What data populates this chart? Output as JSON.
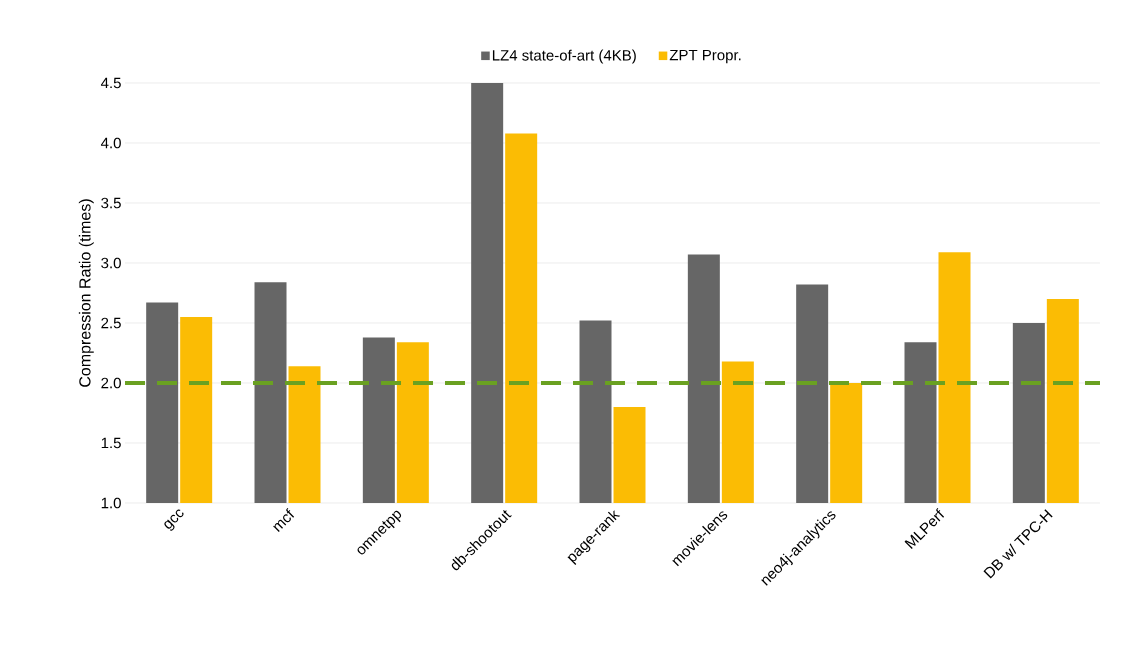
{
  "chart_data": {
    "type": "bar",
    "ylabel": "Compression Ratio (times)",
    "categories": [
      "gcc",
      "mcf",
      "omnetpp",
      "db-shootout",
      "page-rank",
      "movie-lens",
      "neo4j-analytics",
      "MLPerf",
      "DB w/ TPC-H"
    ],
    "series": [
      {
        "name": "LZ4 state-of-art (4KB)",
        "color": "#666666",
        "values": [
          2.67,
          2.84,
          2.38,
          4.5,
          2.52,
          3.07,
          2.82,
          2.34,
          2.5
        ]
      },
      {
        "name": "ZPT Propr.",
        "color": "#fbbc04",
        "values": [
          2.55,
          2.14,
          2.34,
          4.08,
          1.8,
          2.18,
          2.0,
          3.09,
          2.7
        ]
      }
    ],
    "ylim": [
      1.0,
      4.5
    ],
    "yticks": [
      {
        "value": 1,
        "label": "1.0"
      },
      1.5,
      {
        "value": 2,
        "label": "2.0"
      },
      2.5,
      {
        "value": 3,
        "label": "3.0"
      },
      3.5,
      {
        "value": 4,
        "label": "4.0"
      },
      4.5
    ],
    "grid": "y",
    "legend": "top",
    "ref_lines": [
      {
        "axis": "y",
        "value": 2.0,
        "color": "#6aa121",
        "line_style": "dashed"
      }
    ]
  }
}
